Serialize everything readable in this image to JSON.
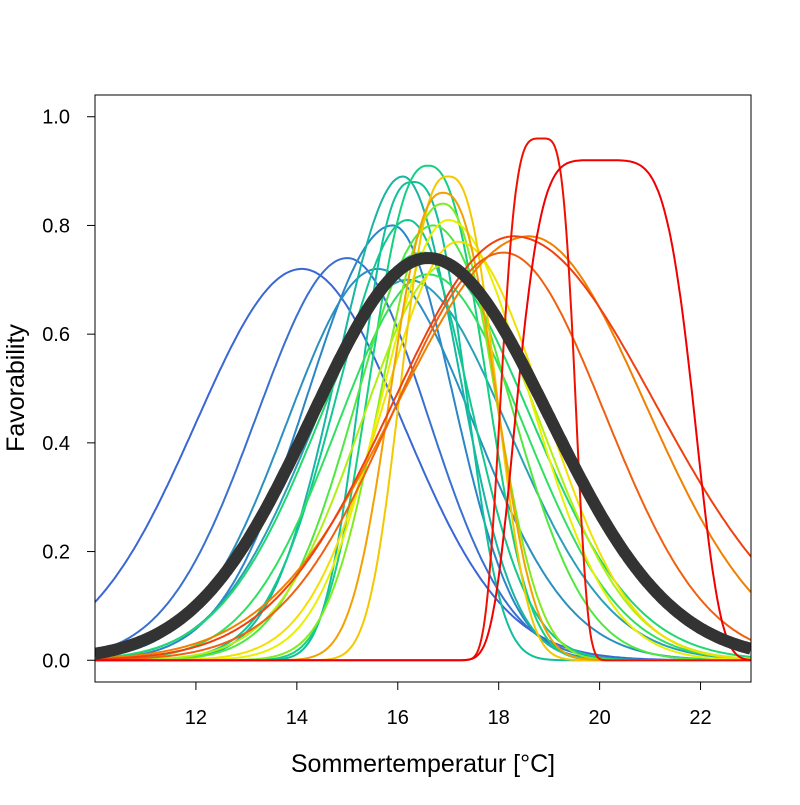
{
  "chart_data": {
    "type": "line",
    "title": "",
    "xlabel": "Sommertemperatur [°C]",
    "ylabel": "Favorability",
    "xlim": [
      10,
      23
    ],
    "ylim": [
      -0.04,
      1.04
    ],
    "xticks": [
      "12",
      "14",
      "16",
      "18",
      "20",
      "22"
    ],
    "yticks": [
      "0.0",
      "0.2",
      "0.4",
      "0.6",
      "0.8",
      "1.0"
    ],
    "grid": false,
    "legend": "none",
    "curve_model": "peak * exp(-0.5 * (|x - mu| / sigma)^power), sigma_left for x<mu and sigma_right for x>mu",
    "series": [
      {
        "color": "#3a66d6",
        "peak": 0.72,
        "mu": 14.1,
        "sl": 2.1,
        "sr": 2.0,
        "p": 2
      },
      {
        "color": "#3a70d0",
        "peak": 0.74,
        "mu": 15.0,
        "sl": 1.8,
        "sr": 1.6,
        "p": 2
      },
      {
        "color": "#2a86c8",
        "peak": 0.8,
        "mu": 15.9,
        "sl": 1.7,
        "sr": 1.2,
        "p": 2
      },
      {
        "color": "#2a90c0",
        "peak": 0.72,
        "mu": 15.6,
        "sl": 1.8,
        "sr": 1.9,
        "p": 2
      },
      {
        "color": "#2aa0b8",
        "peak": 0.7,
        "mu": 16.2,
        "sl": 1.9,
        "sr": 2.0,
        "p": 2
      },
      {
        "color": "#18b4a4",
        "peak": 0.89,
        "mu": 16.1,
        "sl": 1.3,
        "sr": 1.1,
        "p": 2
      },
      {
        "color": "#10c09a",
        "peak": 0.88,
        "mu": 16.3,
        "sl": 1.0,
        "sr": 1.0,
        "p": 2.6
      },
      {
        "color": "#10c890",
        "peak": 0.81,
        "mu": 16.2,
        "sl": 1.4,
        "sr": 1.2,
        "p": 2
      },
      {
        "color": "#14d080",
        "peak": 0.91,
        "mu": 16.6,
        "sl": 1.1,
        "sr": 1.1,
        "p": 2.4
      },
      {
        "color": "#20d870",
        "peak": 0.75,
        "mu": 16.5,
        "sl": 2.0,
        "sr": 2.1,
        "p": 2
      },
      {
        "color": "#30e060",
        "peak": 0.71,
        "mu": 16.6,
        "sl": 1.8,
        "sr": 1.9,
        "p": 2
      },
      {
        "color": "#50e840",
        "peak": 0.8,
        "mu": 16.7,
        "sl": 1.5,
        "sr": 1.5,
        "p": 2
      },
      {
        "color": "#80ec20",
        "peak": 0.84,
        "mu": 16.9,
        "sl": 1.2,
        "sr": 1.0,
        "p": 2.2
      },
      {
        "color": "#b0f010",
        "peak": 0.73,
        "mu": 17.0,
        "sl": 1.7,
        "sr": 1.8,
        "p": 2
      },
      {
        "color": "#e8f000",
        "peak": 0.81,
        "mu": 17.0,
        "sl": 1.3,
        "sr": 1.6,
        "p": 2
      },
      {
        "color": "#f4e000",
        "peak": 0.77,
        "mu": 17.2,
        "sl": 1.5,
        "sr": 1.7,
        "p": 2
      },
      {
        "color": "#f4c800",
        "peak": 0.89,
        "mu": 17.0,
        "sl": 0.9,
        "sr": 0.9,
        "p": 2.6
      },
      {
        "color": "#f4a000",
        "peak": 0.86,
        "mu": 16.9,
        "sl": 1.0,
        "sr": 1.0,
        "p": 2.4
      },
      {
        "color": "#f08000",
        "peak": 0.78,
        "mu": 18.6,
        "sl": 2.6,
        "sr": 2.3,
        "p": 2
      },
      {
        "color": "#f06010",
        "peak": 0.75,
        "mu": 18.1,
        "sl": 2.2,
        "sr": 2.0,
        "p": 2
      },
      {
        "color": "#f04010",
        "peak": 0.78,
        "mu": 18.3,
        "sl": 2.4,
        "sr": 2.8,
        "p": 2
      },
      {
        "color": "#f01000",
        "peak": 0.96,
        "mu": 18.85,
        "sl": 0.75,
        "sr": 0.62,
        "p": 4
      },
      {
        "color": "#f00000",
        "peak": 0.92,
        "mu": 20.0,
        "sl": 1.55,
        "sr": 1.75,
        "p": 5
      },
      {
        "color": "#333333",
        "peak": 0.74,
        "mu": 16.6,
        "sl": 2.3,
        "sr": 2.4,
        "p": 2,
        "mean": true
      }
    ]
  }
}
